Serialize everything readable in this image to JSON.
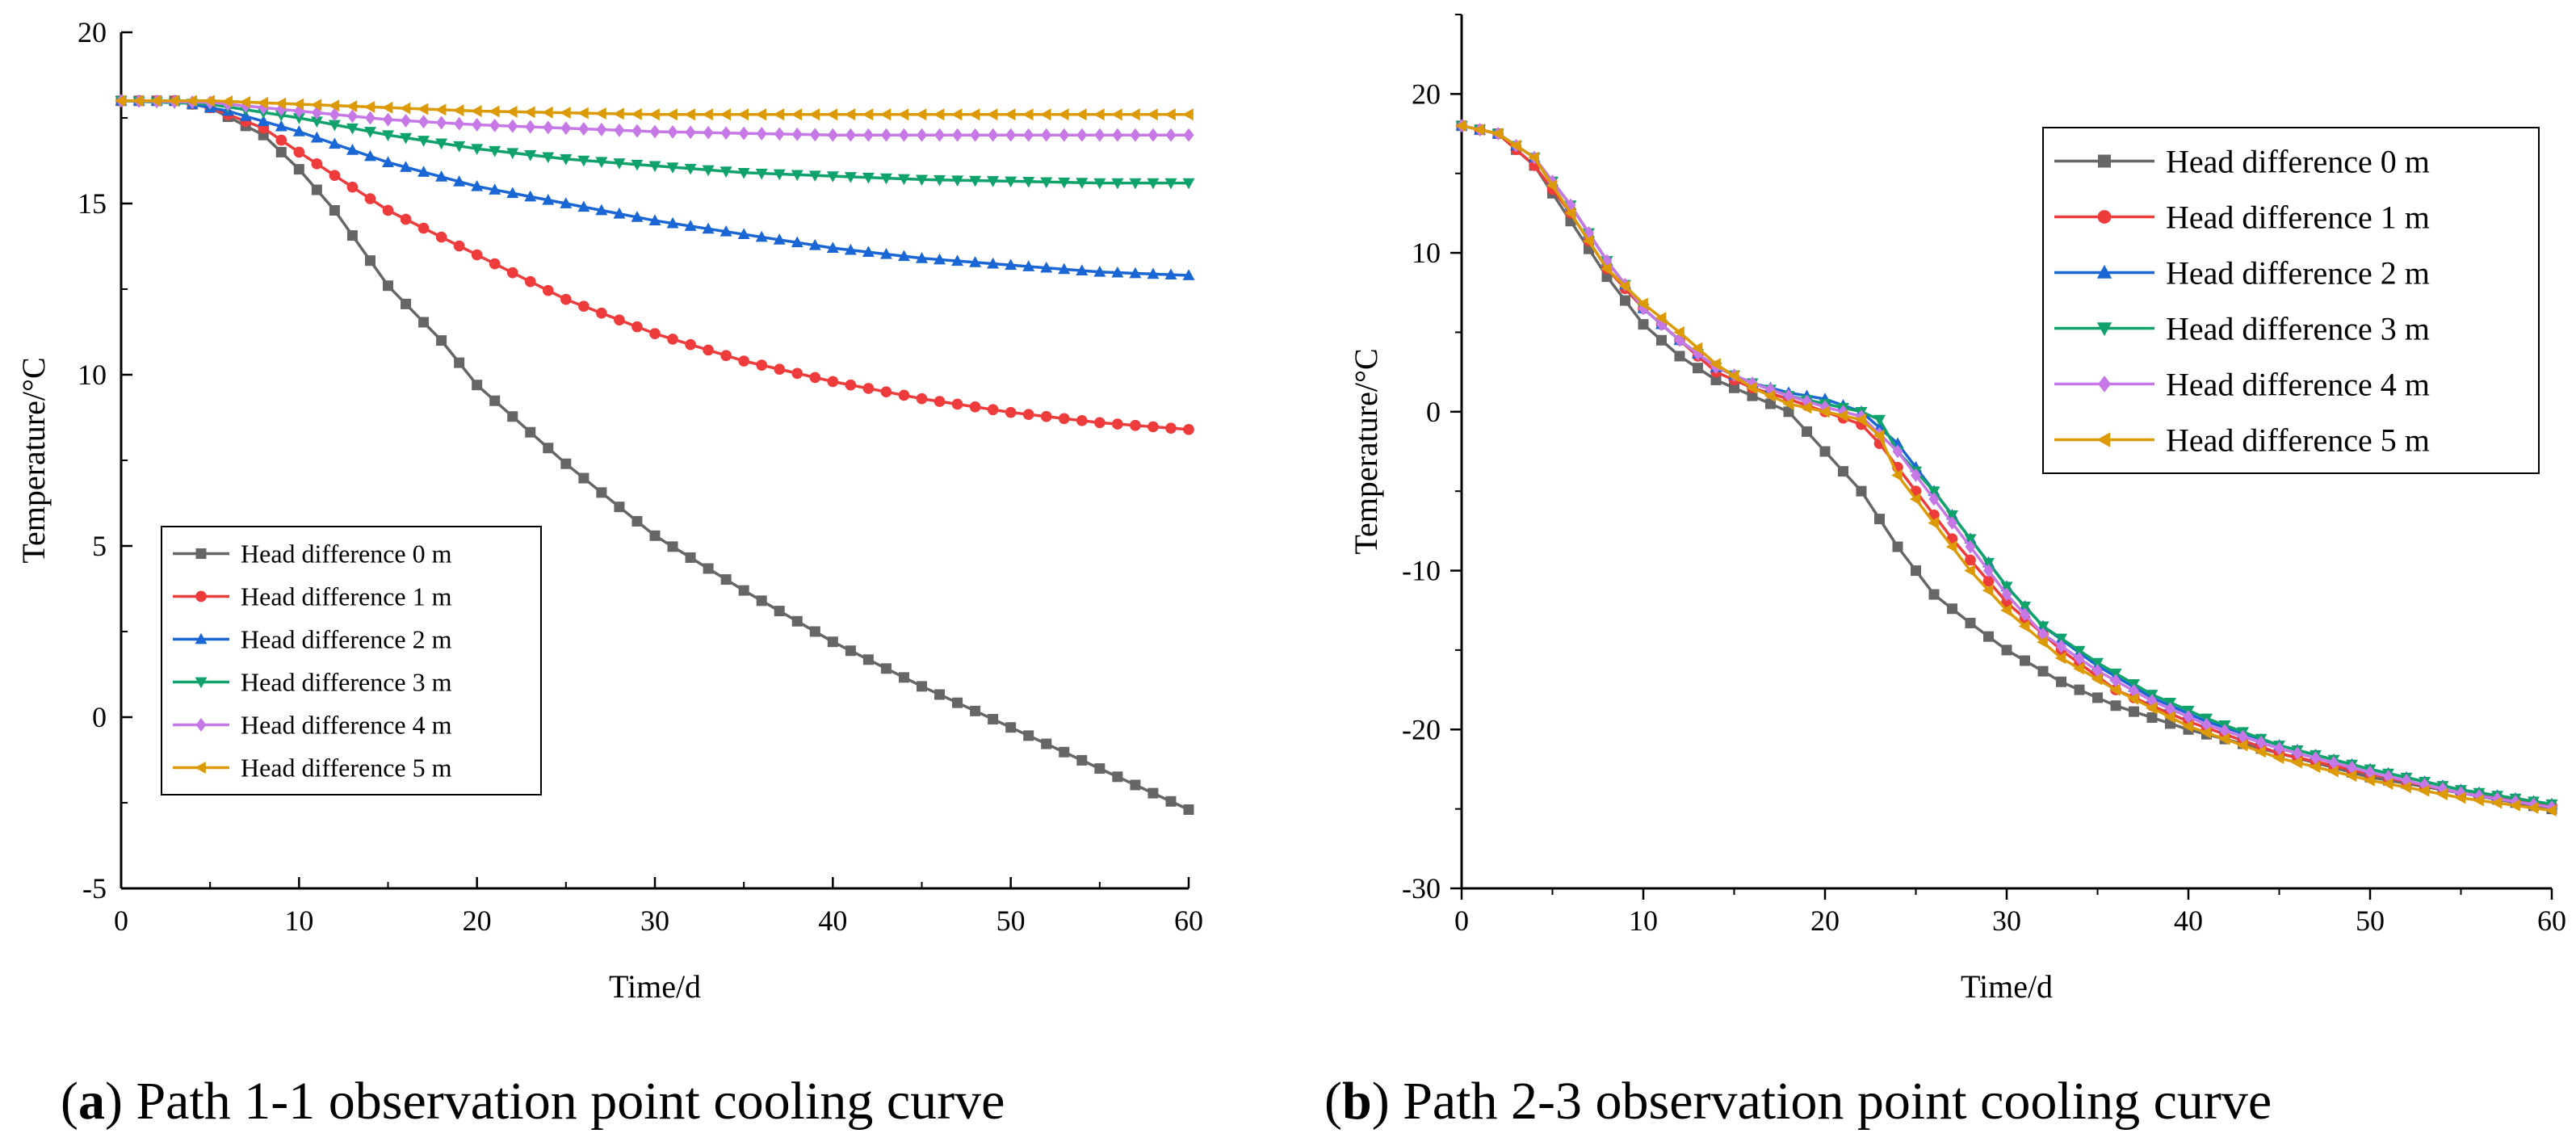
{
  "colors": {
    "hd0": "#666666",
    "hd1": "#ee3b3b",
    "hd2": "#1a66d4",
    "hd3": "#0fa36b",
    "hd4": "#c679e6",
    "hd5": "#dc9b06"
  },
  "chart_data": [
    {
      "id": "a",
      "type": "line",
      "title": "Path 1-1 observation point cooling curve",
      "caption_label": "a",
      "xlabel": "Time/d",
      "ylabel": "Temperature/°C",
      "xlim": [
        0,
        60
      ],
      "ylim": [
        -5,
        20
      ],
      "xticks": [
        0,
        10,
        20,
        30,
        40,
        50,
        60
      ],
      "yticks": [
        -5,
        0,
        5,
        10,
        15,
        20
      ],
      "grid": false,
      "legend_position": "bottom-left",
      "series": [
        {
          "name": "Head difference 0 m",
          "marker": "square",
          "color_key": "hd0",
          "points": [
            [
              0,
              18
            ],
            [
              3,
              18
            ],
            [
              5,
              17.8
            ],
            [
              8,
              17
            ],
            [
              10,
              16
            ],
            [
              12,
              14.8
            ],
            [
              15,
              12.6
            ],
            [
              18,
              11
            ],
            [
              20,
              9.7
            ],
            [
              25,
              7.4
            ],
            [
              30,
              5.3
            ],
            [
              35,
              3.7
            ],
            [
              40,
              2.2
            ],
            [
              45,
              0.9
            ],
            [
              50,
              -0.3
            ],
            [
              55,
              -1.5
            ],
            [
              60,
              -2.7
            ]
          ]
        },
        {
          "name": "Head difference 1 m",
          "marker": "circle",
          "color_key": "hd1",
          "points": [
            [
              0,
              18
            ],
            [
              3,
              18
            ],
            [
              5,
              17.8
            ],
            [
              8,
              17.2
            ],
            [
              10,
              16.5
            ],
            [
              15,
              14.8
            ],
            [
              20,
              13.5
            ],
            [
              25,
              12.2
            ],
            [
              30,
              11.2
            ],
            [
              35,
              10.4
            ],
            [
              40,
              9.8
            ],
            [
              45,
              9.3
            ],
            [
              50,
              8.9
            ],
            [
              55,
              8.6
            ],
            [
              60,
              8.4
            ]
          ]
        },
        {
          "name": "Head difference 2 m",
          "marker": "triangle-up",
          "color_key": "hd2",
          "points": [
            [
              0,
              18
            ],
            [
              3,
              18
            ],
            [
              6,
              17.7
            ],
            [
              10,
              17.1
            ],
            [
              15,
              16.2
            ],
            [
              20,
              15.5
            ],
            [
              25,
              15
            ],
            [
              30,
              14.5
            ],
            [
              35,
              14.1
            ],
            [
              40,
              13.7
            ],
            [
              45,
              13.4
            ],
            [
              50,
              13.2
            ],
            [
              55,
              13
            ],
            [
              60,
              12.9
            ]
          ]
        },
        {
          "name": "Head difference 3 m",
          "marker": "triangle-down",
          "color_key": "hd3",
          "points": [
            [
              0,
              18
            ],
            [
              5,
              17.9
            ],
            [
              10,
              17.5
            ],
            [
              15,
              17
            ],
            [
              20,
              16.6
            ],
            [
              25,
              16.3
            ],
            [
              30,
              16.1
            ],
            [
              35,
              15.9
            ],
            [
              40,
              15.8
            ],
            [
              45,
              15.7
            ],
            [
              50,
              15.65
            ],
            [
              55,
              15.6
            ],
            [
              60,
              15.6
            ]
          ]
        },
        {
          "name": "Head difference 4 m",
          "marker": "diamond",
          "color_key": "hd4",
          "points": [
            [
              0,
              18
            ],
            [
              5,
              17.95
            ],
            [
              10,
              17.7
            ],
            [
              15,
              17.45
            ],
            [
              20,
              17.3
            ],
            [
              25,
              17.2
            ],
            [
              30,
              17.1
            ],
            [
              40,
              17
            ],
            [
              50,
              17
            ],
            [
              60,
              17
            ]
          ]
        },
        {
          "name": "Head difference 5 m",
          "marker": "triangle-left",
          "color_key": "hd5",
          "points": [
            [
              0,
              18
            ],
            [
              5,
              18
            ],
            [
              10,
              17.9
            ],
            [
              15,
              17.8
            ],
            [
              20,
              17.7
            ],
            [
              30,
              17.6
            ],
            [
              40,
              17.6
            ],
            [
              50,
              17.6
            ],
            [
              60,
              17.6
            ]
          ]
        }
      ]
    },
    {
      "id": "b",
      "type": "line",
      "title": "Path 2-3 observation point cooling curve",
      "caption_label": "b",
      "xlabel": "Time/d",
      "ylabel": "Temperature/°C",
      "xlim": [
        0,
        60
      ],
      "ylim": [
        -30,
        25
      ],
      "xticks": [
        0,
        10,
        20,
        30,
        40,
        50,
        60
      ],
      "yticks": [
        -30,
        -20,
        -10,
        0,
        10,
        20
      ],
      "grid": false,
      "legend_position": "top-right",
      "series": [
        {
          "name": "Head difference 0 m",
          "marker": "square",
          "color_key": "hd0",
          "points": [
            [
              0,
              18
            ],
            [
              2,
              17.5
            ],
            [
              4,
              15.5
            ],
            [
              6,
              12
            ],
            [
              8,
              8.5
            ],
            [
              10,
              5.5
            ],
            [
              12,
              3.5
            ],
            [
              14,
              2
            ],
            [
              16,
              1
            ],
            [
              18,
              0
            ],
            [
              20,
              -2.5
            ],
            [
              22,
              -5
            ],
            [
              24,
              -8.5
            ],
            [
              26,
              -11.5
            ],
            [
              28,
              -13.3
            ],
            [
              30,
              -15
            ],
            [
              33,
              -17
            ],
            [
              36,
              -18.5
            ],
            [
              40,
              -20
            ],
            [
              45,
              -21.5
            ],
            [
              50,
              -23
            ],
            [
              55,
              -24
            ],
            [
              60,
              -25
            ]
          ]
        },
        {
          "name": "Head difference 1 m",
          "marker": "circle",
          "color_key": "hd1",
          "points": [
            [
              0,
              18
            ],
            [
              2,
              17.5
            ],
            [
              4,
              15.5
            ],
            [
              6,
              12.5
            ],
            [
              8,
              9
            ],
            [
              10,
              6.5
            ],
            [
              12,
              4.5
            ],
            [
              14,
              2.5
            ],
            [
              16,
              1.5
            ],
            [
              18,
              0.8
            ],
            [
              20,
              0
            ],
            [
              22,
              -0.8
            ],
            [
              23,
              -2
            ],
            [
              25,
              -5
            ],
            [
              27,
              -8
            ],
            [
              30,
              -12
            ],
            [
              33,
              -15
            ],
            [
              36,
              -17.5
            ],
            [
              40,
              -19.5
            ],
            [
              45,
              -21.5
            ],
            [
              50,
              -22.8
            ],
            [
              55,
              -24
            ],
            [
              60,
              -24.8
            ]
          ]
        },
        {
          "name": "Head difference 2 m",
          "marker": "triangle-up",
          "color_key": "hd2",
          "points": [
            [
              0,
              18
            ],
            [
              2,
              17.5
            ],
            [
              4,
              16
            ],
            [
              6,
              13
            ],
            [
              8,
              9.5
            ],
            [
              10,
              6.5
            ],
            [
              12,
              4.5
            ],
            [
              14,
              2.8
            ],
            [
              16,
              1.8
            ],
            [
              18,
              1.2
            ],
            [
              20,
              0.8
            ],
            [
              22,
              0
            ],
            [
              24,
              -2
            ],
            [
              26,
              -5
            ],
            [
              28,
              -8
            ],
            [
              30,
              -11
            ],
            [
              32,
              -13.5
            ],
            [
              35,
              -16
            ],
            [
              38,
              -18
            ],
            [
              41,
              -19.5
            ],
            [
              45,
              -21
            ],
            [
              50,
              -22.5
            ],
            [
              55,
              -23.8
            ],
            [
              60,
              -24.7
            ]
          ]
        },
        {
          "name": "Head difference 3 m",
          "marker": "triangle-down",
          "color_key": "hd3",
          "points": [
            [
              0,
              18
            ],
            [
              2,
              17.5
            ],
            [
              4,
              16
            ],
            [
              6,
              13
            ],
            [
              8,
              9.5
            ],
            [
              10,
              6.5
            ],
            [
              12,
              4.5
            ],
            [
              14,
              2.8
            ],
            [
              16,
              1.8
            ],
            [
              18,
              1
            ],
            [
              20,
              0.5
            ],
            [
              22,
              0
            ],
            [
              23,
              -0.5
            ],
            [
              24,
              -2.5
            ],
            [
              26,
              -5
            ],
            [
              28,
              -8
            ],
            [
              30,
              -11
            ],
            [
              32,
              -13.5
            ],
            [
              35,
              -15.8
            ],
            [
              38,
              -17.8
            ],
            [
              41,
              -19.3
            ],
            [
              45,
              -21
            ],
            [
              50,
              -22.5
            ],
            [
              55,
              -23.8
            ],
            [
              60,
              -24.7
            ]
          ]
        },
        {
          "name": "Head difference 4 m",
          "marker": "diamond",
          "color_key": "hd4",
          "points": [
            [
              0,
              18
            ],
            [
              2,
              17.5
            ],
            [
              4,
              16
            ],
            [
              6,
              13
            ],
            [
              8,
              9.5
            ],
            [
              10,
              6.5
            ],
            [
              12,
              4.5
            ],
            [
              14,
              2.8
            ],
            [
              16,
              1.8
            ],
            [
              18,
              1
            ],
            [
              20,
              0.3
            ],
            [
              22,
              -0.3
            ],
            [
              24,
              -2.5
            ],
            [
              26,
              -5.5
            ],
            [
              28,
              -8.5
            ],
            [
              30,
              -11.5
            ],
            [
              32,
              -14
            ],
            [
              35,
              -16.3
            ],
            [
              38,
              -18.2
            ],
            [
              41,
              -19.7
            ],
            [
              45,
              -21.2
            ],
            [
              50,
              -22.7
            ],
            [
              55,
              -24
            ],
            [
              60,
              -24.9
            ]
          ]
        },
        {
          "name": "Head difference 5 m",
          "marker": "triangle-left",
          "color_key": "hd5",
          "points": [
            [
              0,
              18
            ],
            [
              2,
              17.5
            ],
            [
              4,
              16
            ],
            [
              6,
              12.5
            ],
            [
              8,
              9
            ],
            [
              10,
              6.8
            ],
            [
              12,
              5
            ],
            [
              14,
              3
            ],
            [
              16,
              1.5
            ],
            [
              18,
              0.5
            ],
            [
              20,
              0
            ],
            [
              22,
              -0.5
            ],
            [
              23,
              -1.5
            ],
            [
              24,
              -4
            ],
            [
              26,
              -7
            ],
            [
              28,
              -10
            ],
            [
              30,
              -12.5
            ],
            [
              33,
              -15.5
            ],
            [
              36,
              -17.5
            ],
            [
              40,
              -19.8
            ],
            [
              45,
              -21.8
            ],
            [
              50,
              -23.2
            ],
            [
              55,
              -24.3
            ],
            [
              60,
              -25.1
            ]
          ]
        }
      ]
    }
  ]
}
